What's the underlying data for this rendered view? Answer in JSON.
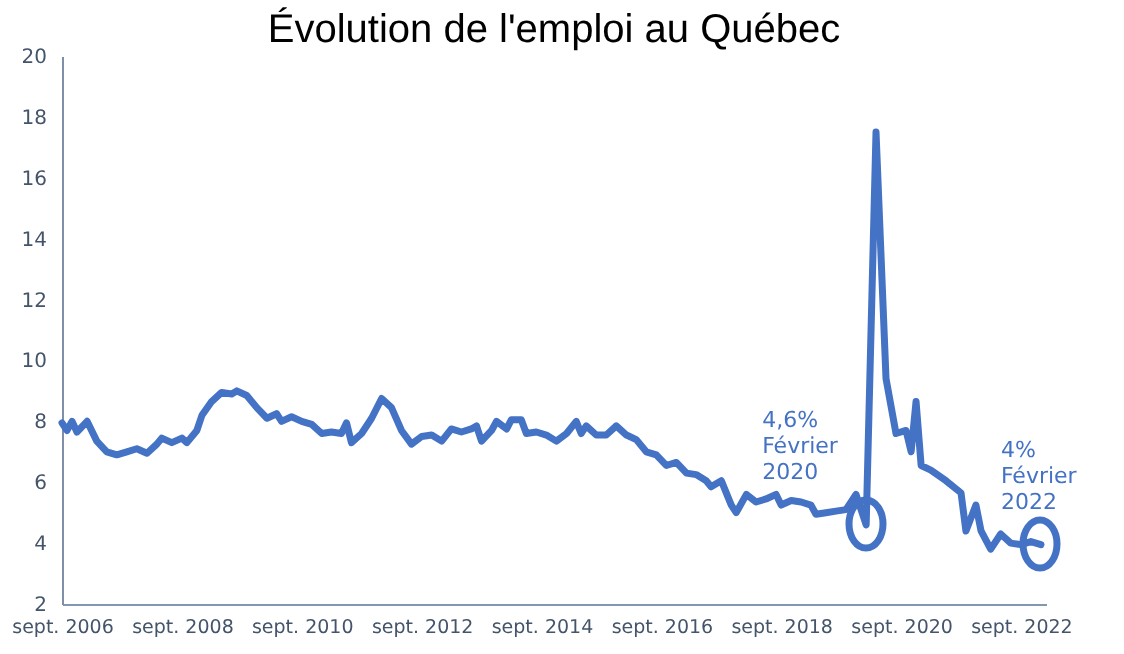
{
  "chart_data": {
    "type": "line",
    "title": "Évolution de l'emploi au Québec",
    "x": [
      "2006-09",
      "2006-10",
      "2006-11",
      "2006-12",
      "2007-02",
      "2007-04",
      "2007-06",
      "2007-08",
      "2007-10",
      "2007-12",
      "2008-02",
      "2008-04",
      "2008-05",
      "2008-07",
      "2008-09",
      "2008-10",
      "2008-12",
      "2009-01",
      "2009-03",
      "2009-05",
      "2009-07",
      "2009-08",
      "2009-10",
      "2009-12",
      "2010-02",
      "2010-04",
      "2010-05",
      "2010-07",
      "2010-09",
      "2010-11",
      "2011-01",
      "2011-03",
      "2011-05",
      "2011-06",
      "2011-07",
      "2011-09",
      "2011-11",
      "2012-01",
      "2012-03",
      "2012-05",
      "2012-07",
      "2012-09",
      "2012-11",
      "2013-01",
      "2013-03",
      "2013-05",
      "2013-07",
      "2013-08",
      "2013-09",
      "2013-11",
      "2013-12",
      "2014-02",
      "2014-03",
      "2014-05",
      "2014-06",
      "2014-08",
      "2014-10",
      "2014-12",
      "2015-02",
      "2015-04",
      "2015-05",
      "2015-06",
      "2015-08",
      "2015-10",
      "2015-12",
      "2016-02",
      "2016-04",
      "2016-06",
      "2016-08",
      "2016-10",
      "2016-12",
      "2017-02",
      "2017-04",
      "2017-06",
      "2017-07",
      "2017-09",
      "2017-11",
      "2017-12",
      "2018-02",
      "2018-04",
      "2018-06",
      "2018-08",
      "2018-09",
      "2018-11",
      "2019-01",
      "2019-03",
      "2019-04",
      "2019-06",
      "2019-08",
      "2019-10",
      "2019-12",
      "2020-02",
      "2020-04",
      "2020-06",
      "2020-08",
      "2020-10",
      "2020-11",
      "2020-12",
      "2021-01",
      "2021-03",
      "2021-06",
      "2021-09",
      "2021-10",
      "2021-12",
      "2022-01",
      "2022-03",
      "2022-05",
      "2022-07",
      "2022-09",
      "2022-11",
      "2023-01"
    ],
    "series": [
      {
        "color": "#4472c4",
        "values": [
          7.95,
          7.7,
          8.0,
          7.65,
          8.0,
          7.35,
          7.0,
          6.9,
          7.0,
          7.1,
          6.95,
          7.25,
          7.45,
          7.3,
          7.45,
          7.3,
          7.7,
          8.2,
          8.65,
          8.95,
          8.9,
          9.0,
          8.85,
          8.45,
          8.1,
          8.25,
          8.0,
          8.15,
          8.0,
          7.9,
          7.6,
          7.65,
          7.6,
          7.95,
          7.3,
          7.6,
          8.1,
          8.75,
          8.45,
          7.7,
          7.25,
          7.5,
          7.55,
          7.35,
          7.75,
          7.65,
          7.75,
          7.85,
          7.35,
          7.7,
          8.0,
          7.75,
          8.05,
          8.05,
          7.6,
          7.65,
          7.55,
          7.35,
          7.6,
          8.0,
          7.6,
          7.85,
          7.55,
          7.55,
          7.85,
          7.55,
          7.4,
          7.0,
          6.9,
          6.55,
          6.65,
          6.3,
          6.25,
          6.05,
          5.85,
          6.05,
          5.25,
          5.0,
          5.6,
          5.35,
          5.45,
          5.6,
          5.25,
          5.4,
          5.35,
          5.25,
          4.95,
          5.0,
          5.05,
          5.1,
          5.6,
          4.6,
          17.5,
          9.4,
          7.6,
          7.7,
          7.0,
          8.65,
          6.55,
          6.4,
          6.05,
          5.65,
          4.4,
          5.25,
          4.4,
          3.8,
          4.3,
          4.0,
          3.95,
          4.05,
          3.95
        ]
      }
    ],
    "xlim": [
      "2006-09",
      "2023-02"
    ],
    "xticks": [
      {
        "value": "2006-09",
        "label": "sept. 2006"
      },
      {
        "value": "2008-09",
        "label": "sept. 2008"
      },
      {
        "value": "2010-09",
        "label": "sept. 2010"
      },
      {
        "value": "2012-09",
        "label": "sept. 2012"
      },
      {
        "value": "2014-09",
        "label": "sept. 2014"
      },
      {
        "value": "2016-09",
        "label": "sept. 2016"
      },
      {
        "value": "2018-09",
        "label": "sept. 2018"
      },
      {
        "value": "2020-09",
        "label": "sept. 2020"
      },
      {
        "value": "2022-09",
        "label": "sept. 2022"
      }
    ],
    "ylim": [
      2,
      20
    ],
    "yticks": [
      2,
      4,
      6,
      8,
      10,
      12,
      14,
      16,
      18,
      20
    ],
    "annotations": [
      {
        "text": "4,6%\nFévrier\n2020",
        "x": "2020-02",
        "y": 4.6
      },
      {
        "text": "4%\nFévrier\n2022",
        "x": "2023-01",
        "y": 4
      }
    ]
  }
}
